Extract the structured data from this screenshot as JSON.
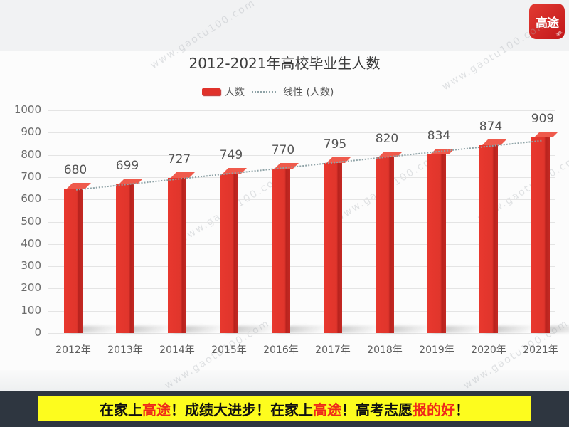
{
  "brand": {
    "logo_text": "高途",
    "logo_tag": "课堂",
    "accent": "#e0322b"
  },
  "watermark": "www.gaotu100.com",
  "chart_data": {
    "type": "bar",
    "title": "2012-2021年高校毕业生人数",
    "categories": [
      "2012年",
      "2013年",
      "2014年",
      "2015年",
      "2016年",
      "2017年",
      "2018年",
      "2019年",
      "2020年",
      "2021年"
    ],
    "series": [
      {
        "name": "人数",
        "color": "#e0322b",
        "values": [
          680,
          699,
          727,
          749,
          770,
          795,
          820,
          834,
          874,
          909
        ]
      }
    ],
    "trendline": {
      "name": "线性 (人数)",
      "style": "dotted",
      "color": "#8fa3a7"
    },
    "legend": [
      "人数",
      "线性 (人数)"
    ],
    "legend_position": "top",
    "xlabel": "",
    "ylabel": "",
    "ylim": [
      0,
      1000
    ],
    "yticks": [
      "0",
      "100",
      "200",
      "300",
      "400",
      "500",
      "600",
      "700",
      "800",
      "900",
      "1000"
    ],
    "grid": true
  },
  "banner": {
    "segments": [
      {
        "text": "在家上",
        "red": false
      },
      {
        "text": "高途",
        "red": true
      },
      {
        "text": "！成绩大进步！在家上",
        "red": false
      },
      {
        "text": "高途",
        "red": true
      },
      {
        "text": "！高考志愿",
        "red": false
      },
      {
        "text": "报的好",
        "red": true
      },
      {
        "text": "！",
        "red": false
      }
    ]
  }
}
